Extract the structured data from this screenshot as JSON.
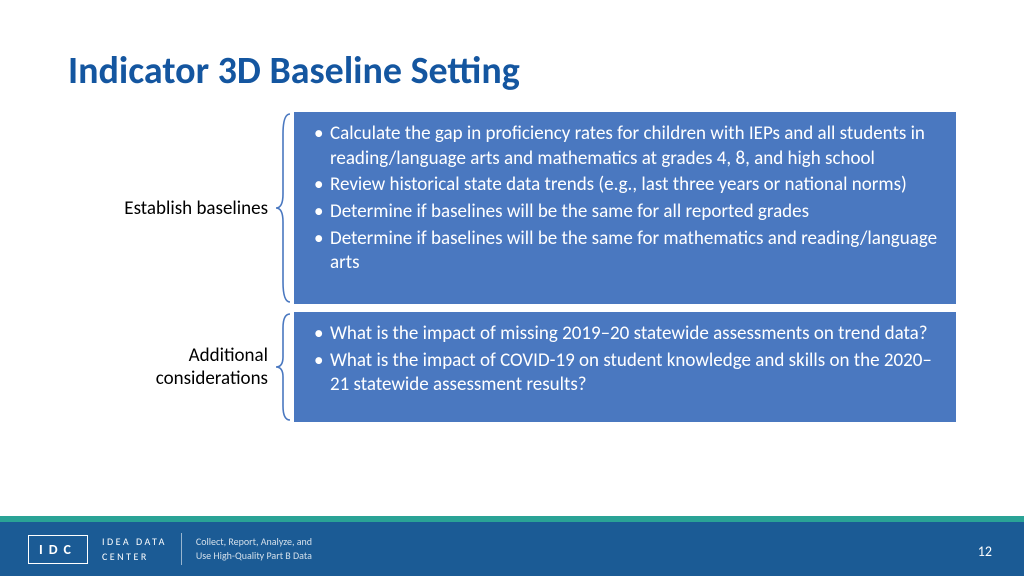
{
  "colors": {
    "title": "#1456a0",
    "box_bg": "#4a78c0",
    "bracket": "#4a78c0",
    "footer_accent": "#2aa396",
    "footer_main": "#1b5b95"
  },
  "title": "Indicator 3D Baseline Setting",
  "sections": [
    {
      "label": "Establish baselines",
      "bullets": [
        "Calculate the gap in proficiency rates for children with IEPs and all students in reading/language arts and mathematics at grades 4, 8, and high school",
        "Review historical state data trends (e.g., last three years or national norms)",
        "Determine if baselines will be the same for all reported grades",
        "Determine if baselines will be the same for mathematics and reading/language arts"
      ]
    },
    {
      "label": "Additional considerations",
      "bullets": [
        "What is the impact of missing 2019–20 statewide assessments on trend data?",
        "What is the impact of COVID-19 on student knowledge and skills on the 2020–21 statewide assessment results?"
      ]
    }
  ],
  "footer": {
    "idc": "IDC",
    "idc_text_line1": "IDEA DATA",
    "idc_text_line2": "CENTER",
    "tagline_line1": "Collect, Report, Analyze, and",
    "tagline_line2": "Use High-Quality Part B Data",
    "page": "12"
  }
}
